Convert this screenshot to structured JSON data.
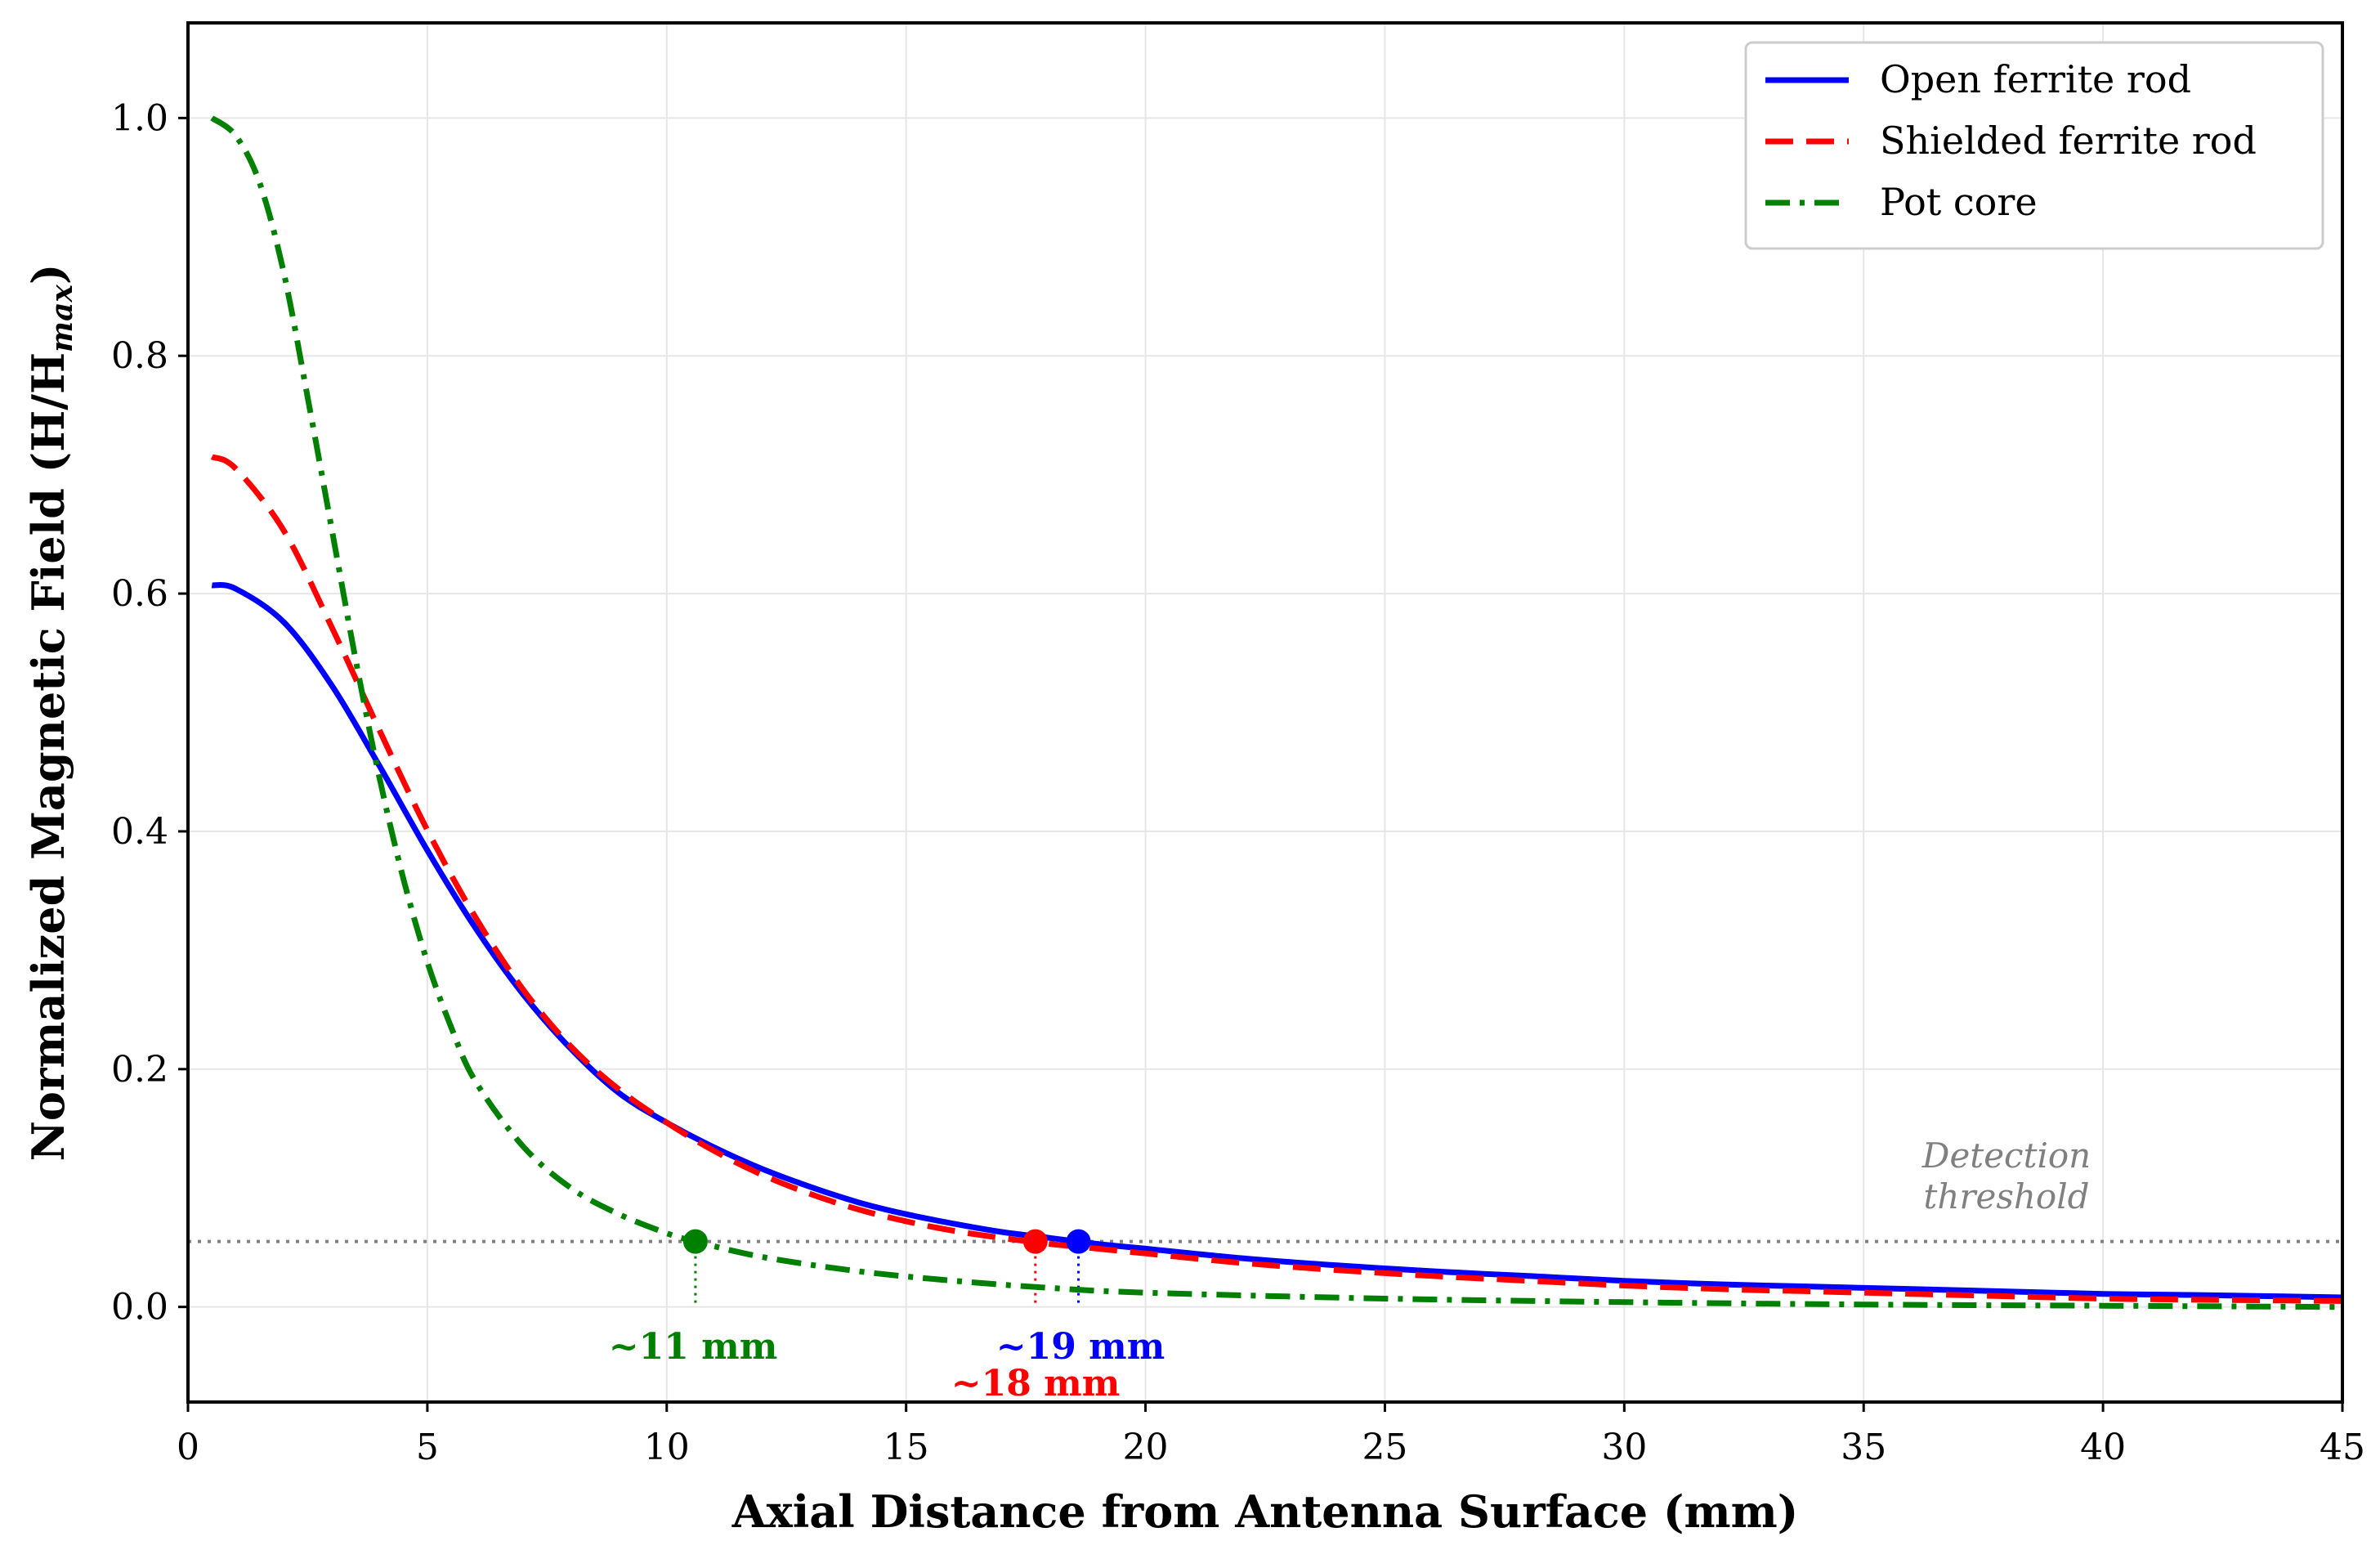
{
  "chart_data": {
    "type": "line",
    "title": "",
    "xlabel": "Axial Distance from Antenna Surface (mm)",
    "ylabel_main": "Normalized Magnetic Field (H/H",
    "ylabel_sub": "max",
    "ylabel_close": ")",
    "xlim": [
      0,
      45
    ],
    "ylim": [
      -0.08,
      1.08
    ],
    "xticks": [
      0,
      5,
      10,
      15,
      20,
      25,
      30,
      35,
      40,
      45
    ],
    "yticks": [
      0.0,
      0.2,
      0.4,
      0.6,
      0.8,
      1.0
    ],
    "ytick_labels": [
      "0.0",
      "0.2",
      "0.4",
      "0.6",
      "0.8",
      "1.0"
    ],
    "grid": true,
    "legend_position": "upper right",
    "threshold": {
      "value": 0.055,
      "label_line1": "Detection",
      "label_line2": "threshold",
      "color": "#808080"
    },
    "series": [
      {
        "name": "Open ferrite rod",
        "color": "#0000ff",
        "style": "solid",
        "x": [
          0.5,
          1,
          2,
          3,
          4,
          5,
          6,
          7,
          8,
          9,
          10,
          11,
          12,
          13,
          14,
          15,
          16,
          17,
          18,
          19,
          20,
          22,
          24,
          26,
          28,
          30,
          32,
          34,
          36,
          38,
          40,
          42,
          45
        ],
        "y": [
          0.607,
          0.604,
          0.576,
          0.523,
          0.455,
          0.384,
          0.319,
          0.263,
          0.217,
          0.18,
          0.155,
          0.134,
          0.116,
          0.101,
          0.088,
          0.078,
          0.07,
          0.063,
          0.058,
          0.053,
          0.049,
          0.041,
          0.035,
          0.03,
          0.026,
          0.022,
          0.019,
          0.017,
          0.015,
          0.013,
          0.011,
          0.01,
          0.008
        ]
      },
      {
        "name": "Shielded ferrite rod",
        "color": "#ff0000",
        "style": "dashed",
        "x": [
          0.5,
          1,
          2,
          3,
          4,
          5,
          6,
          7,
          8,
          9,
          10,
          11,
          12,
          13,
          14,
          15,
          16,
          17,
          18,
          19,
          20,
          22,
          24,
          26,
          28,
          30,
          32,
          34,
          36,
          38,
          40,
          42,
          45
        ],
        "y": [
          0.715,
          0.705,
          0.653,
          0.572,
          0.485,
          0.401,
          0.328,
          0.267,
          0.219,
          0.183,
          0.155,
          0.131,
          0.111,
          0.095,
          0.082,
          0.072,
          0.064,
          0.058,
          0.053,
          0.049,
          0.045,
          0.037,
          0.031,
          0.026,
          0.022,
          0.018,
          0.015,
          0.013,
          0.011,
          0.009,
          0.007,
          0.006,
          0.005
        ]
      },
      {
        "name": "Pot core",
        "color": "#008000",
        "style": "dashdot",
        "x": [
          0.5,
          1,
          1.5,
          2,
          2.5,
          3,
          3.5,
          4,
          4.5,
          5,
          5.5,
          6,
          7,
          8,
          9,
          10,
          10.6,
          12,
          14,
          16,
          18,
          20,
          25,
          30,
          35,
          40,
          45
        ],
        "y": [
          1.0,
          0.985,
          0.945,
          0.87,
          0.765,
          0.655,
          0.545,
          0.445,
          0.36,
          0.29,
          0.235,
          0.19,
          0.135,
          0.1,
          0.078,
          0.062,
          0.055,
          0.042,
          0.03,
          0.022,
          0.016,
          0.012,
          0.007,
          0.004,
          0.002,
          0.001,
          0.0
        ]
      }
    ],
    "markers": [
      {
        "series": "Pot core",
        "x": 10.6,
        "y": 0.055,
        "label": "~11 mm",
        "color": "#008000"
      },
      {
        "series": "Shielded ferrite rod",
        "x": 17.7,
        "y": 0.055,
        "label": "~18 mm",
        "color": "#ff0000"
      },
      {
        "series": "Open ferrite rod",
        "x": 18.6,
        "y": 0.055,
        "label": "~19 mm",
        "color": "#0000ff"
      }
    ]
  }
}
